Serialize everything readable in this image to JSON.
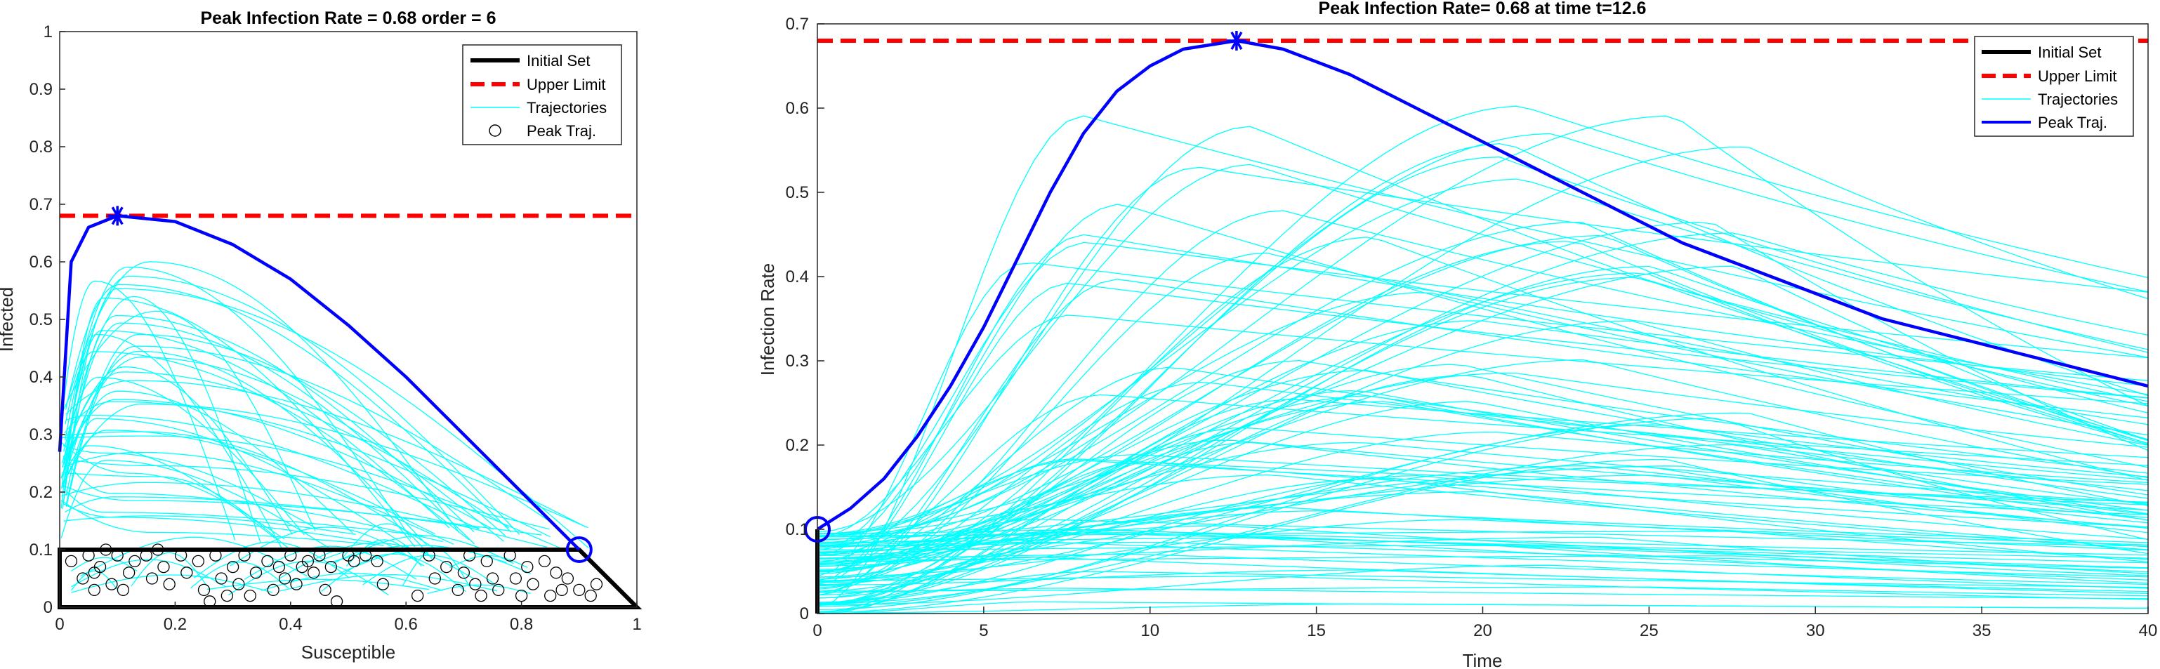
{
  "chart_data": [
    {
      "type": "line",
      "title": "Peak Infection Rate = 0.68 order = 6",
      "xlabel": "Susceptible",
      "ylabel": "Infected",
      "xlim": [
        0,
        1
      ],
      "ylim": [
        0,
        1
      ],
      "xticks": [
        "0",
        "0.2",
        "0.4",
        "0.6",
        "0.8",
        "1"
      ],
      "yticks": [
        "0",
        "0.1",
        "0.2",
        "0.3",
        "0.4",
        "0.5",
        "0.6",
        "0.7",
        "0.8",
        "0.9",
        "1"
      ],
      "legend_position": "top-right",
      "legend": [
        "Initial Set",
        "Upper Limit",
        "Trajectories",
        "Peak Traj."
      ],
      "upper_limit": 0.68,
      "initial_set": [
        [
          0,
          0
        ],
        [
          0,
          0.1
        ],
        [
          0.9,
          0.1
        ],
        [
          1,
          0
        ]
      ],
      "peak_trajectory": {
        "start": [
          0.9,
          0.1
        ],
        "peak": [
          0.1,
          0.68
        ],
        "end": [
          0,
          0.27
        ],
        "points": [
          [
            0.9,
            0.1
          ],
          [
            0.8,
            0.2
          ],
          [
            0.7,
            0.3
          ],
          [
            0.6,
            0.4
          ],
          [
            0.5,
            0.49
          ],
          [
            0.4,
            0.57
          ],
          [
            0.3,
            0.63
          ],
          [
            0.2,
            0.67
          ],
          [
            0.1,
            0.68
          ],
          [
            0.05,
            0.66
          ],
          [
            0.02,
            0.6
          ],
          [
            0,
            0.27
          ]
        ]
      },
      "initial_points": [
        [
          0.02,
          0.08
        ],
        [
          0.04,
          0.05
        ],
        [
          0.05,
          0.09
        ],
        [
          0.06,
          0.03
        ],
        [
          0.07,
          0.07
        ],
        [
          0.08,
          0.1
        ],
        [
          0.1,
          0.09
        ],
        [
          0.11,
          0.03
        ],
        [
          0.12,
          0.06
        ],
        [
          0.13,
          0.08
        ],
        [
          0.15,
          0.09
        ],
        [
          0.16,
          0.05
        ],
        [
          0.17,
          0.1
        ],
        [
          0.18,
          0.07
        ],
        [
          0.19,
          0.04
        ],
        [
          0.21,
          0.09
        ],
        [
          0.22,
          0.06
        ],
        [
          0.24,
          0.08
        ],
        [
          0.25,
          0.03
        ],
        [
          0.26,
          0.01
        ],
        [
          0.27,
          0.09
        ],
        [
          0.28,
          0.05
        ],
        [
          0.29,
          0.02
        ],
        [
          0.3,
          0.07
        ],
        [
          0.31,
          0.04
        ],
        [
          0.32,
          0.09
        ],
        [
          0.33,
          0.02
        ],
        [
          0.34,
          0.06
        ],
        [
          0.36,
          0.08
        ],
        [
          0.37,
          0.03
        ],
        [
          0.38,
          0.07
        ],
        [
          0.39,
          0.05
        ],
        [
          0.4,
          0.09
        ],
        [
          0.41,
          0.04
        ],
        [
          0.42,
          0.07
        ],
        [
          0.43,
          0.08
        ],
        [
          0.44,
          0.06
        ],
        [
          0.45,
          0.09
        ],
        [
          0.46,
          0.03
        ],
        [
          0.47,
          0.07
        ],
        [
          0.48,
          0.01
        ],
        [
          0.5,
          0.09
        ],
        [
          0.51,
          0.08
        ],
        [
          0.53,
          0.09
        ],
        [
          0.55,
          0.08
        ],
        [
          0.56,
          0.04
        ],
        [
          0.62,
          0.02
        ],
        [
          0.64,
          0.09
        ],
        [
          0.65,
          0.05
        ],
        [
          0.67,
          0.07
        ],
        [
          0.69,
          0.03
        ],
        [
          0.7,
          0.06
        ],
        [
          0.71,
          0.09
        ],
        [
          0.72,
          0.04
        ],
        [
          0.73,
          0.02
        ],
        [
          0.74,
          0.08
        ],
        [
          0.75,
          0.05
        ],
        [
          0.76,
          0.03
        ],
        [
          0.78,
          0.09
        ],
        [
          0.79,
          0.05
        ],
        [
          0.8,
          0.02
        ],
        [
          0.81,
          0.07
        ],
        [
          0.82,
          0.04
        ],
        [
          0.84,
          0.08
        ],
        [
          0.85,
          0.02
        ],
        [
          0.86,
          0.06
        ],
        [
          0.87,
          0.03
        ],
        [
          0.88,
          0.05
        ],
        [
          0.9,
          0.03
        ],
        [
          0.92,
          0.02
        ],
        [
          0.93,
          0.04
        ],
        [
          0.06,
          0.06
        ],
        [
          0.09,
          0.04
        ]
      ],
      "colors": {
        "initial_set": "#000000",
        "upper_limit": "#ff0000",
        "trajectories": "#00ffff",
        "peak": "#0000ff",
        "points": "#000000"
      }
    },
    {
      "type": "line",
      "title": "Peak Infection Rate= 0.68 at time t=12.6",
      "xlabel": "Time",
      "ylabel": "Infection Rate",
      "xlim": [
        0,
        40
      ],
      "ylim": [
        0,
        0.7
      ],
      "xticks": [
        "0",
        "5",
        "10",
        "15",
        "20",
        "25",
        "30",
        "35",
        "40"
      ],
      "yticks": [
        "0",
        "0.1",
        "0.2",
        "0.3",
        "0.4",
        "0.5",
        "0.6",
        "0.7"
      ],
      "legend_position": "top-right",
      "legend": [
        "Initial Set",
        "Upper Limit",
        "Trajectories",
        "Peak Traj."
      ],
      "upper_limit": 0.68,
      "peak_time": 12.6,
      "peak_value": 0.68,
      "peak_trajectory_points": [
        [
          0,
          0.1
        ],
        [
          1,
          0.125
        ],
        [
          2,
          0.16
        ],
        [
          3,
          0.21
        ],
        [
          4,
          0.27
        ],
        [
          5,
          0.34
        ],
        [
          6,
          0.42
        ],
        [
          7,
          0.5
        ],
        [
          8,
          0.57
        ],
        [
          9,
          0.62
        ],
        [
          10,
          0.65
        ],
        [
          11,
          0.67
        ],
        [
          12.6,
          0.68
        ],
        [
          14,
          0.67
        ],
        [
          16,
          0.64
        ],
        [
          18,
          0.6
        ],
        [
          20,
          0.56
        ],
        [
          22,
          0.52
        ],
        [
          24,
          0.48
        ],
        [
          26,
          0.44
        ],
        [
          28,
          0.41
        ],
        [
          30,
          0.38
        ],
        [
          32,
          0.35
        ],
        [
          34,
          0.33
        ],
        [
          36,
          0.31
        ],
        [
          38,
          0.29
        ],
        [
          40,
          0.27
        ]
      ],
      "colors": {
        "initial_set": "#000000",
        "upper_limit": "#ff0000",
        "trajectories": "#00ffff",
        "peak": "#0000ff"
      }
    }
  ]
}
